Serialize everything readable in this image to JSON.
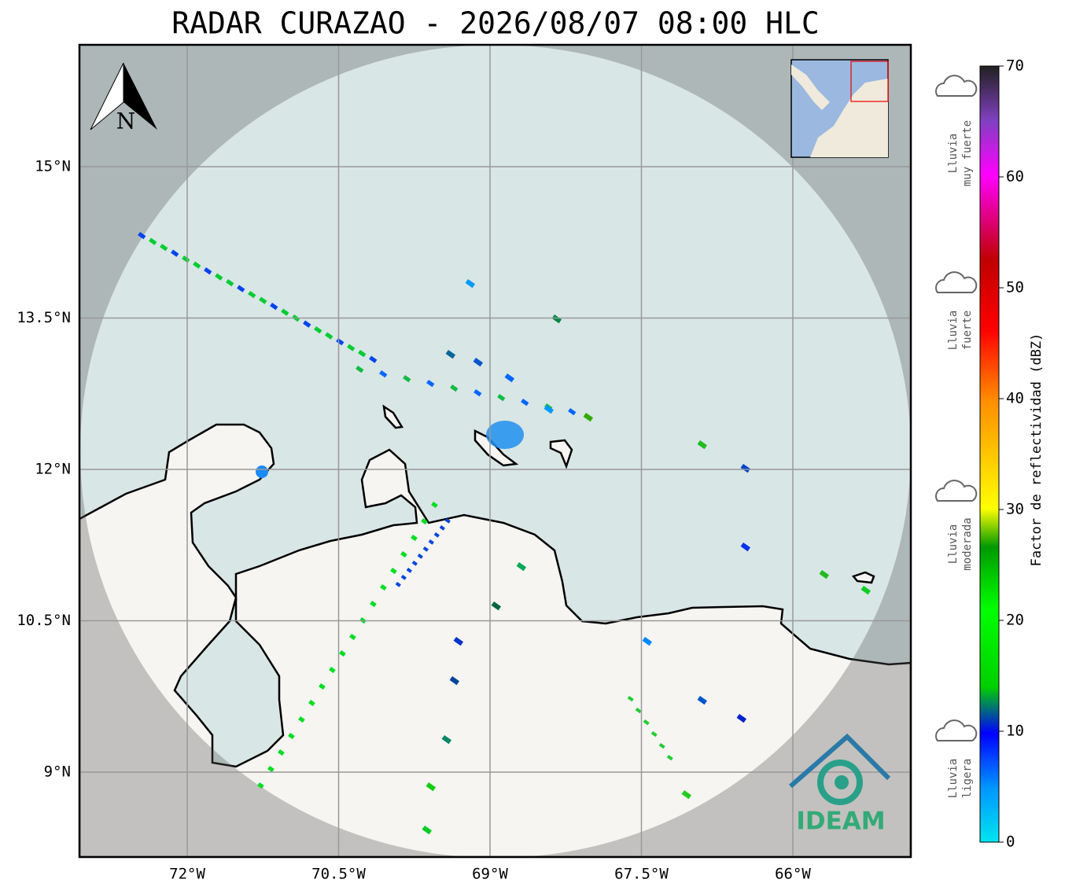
{
  "title": "RADAR CURAZAO - 2026/08/07 08:00 HLC",
  "map": {
    "lon_ticks": [
      {
        "value": -72,
        "label": "72°W"
      },
      {
        "value": -70.5,
        "label": "70.5°W"
      },
      {
        "value": -69,
        "label": "69°W"
      },
      {
        "value": -67.5,
        "label": "67.5°W"
      },
      {
        "value": -66,
        "label": "66°W"
      }
    ],
    "lat_ticks": [
      {
        "value": 15,
        "label": "15°N"
      },
      {
        "value": 13.5,
        "label": "13.5°N"
      },
      {
        "value": 12,
        "label": "12°N"
      },
      {
        "value": 10.5,
        "label": "10.5°N"
      },
      {
        "value": 9,
        "label": "9°N"
      }
    ],
    "north_label": "N",
    "logo_text": "IDEAM"
  },
  "colorbar": {
    "label": "Factor de reflectividad (dBZ)",
    "range": [
      0,
      70
    ],
    "ticks": [
      0,
      10,
      20,
      30,
      40,
      50,
      60,
      70
    ]
  },
  "legend": [
    {
      "lines": [
        "Lluvia",
        "muy fuerte"
      ]
    },
    {
      "lines": [
        "Lluvia",
        "fuerte"
      ]
    },
    {
      "lines": [
        "Lluvia",
        "moderada"
      ]
    },
    {
      "lines": [
        "Lluvia",
        "ligera"
      ]
    }
  ]
}
